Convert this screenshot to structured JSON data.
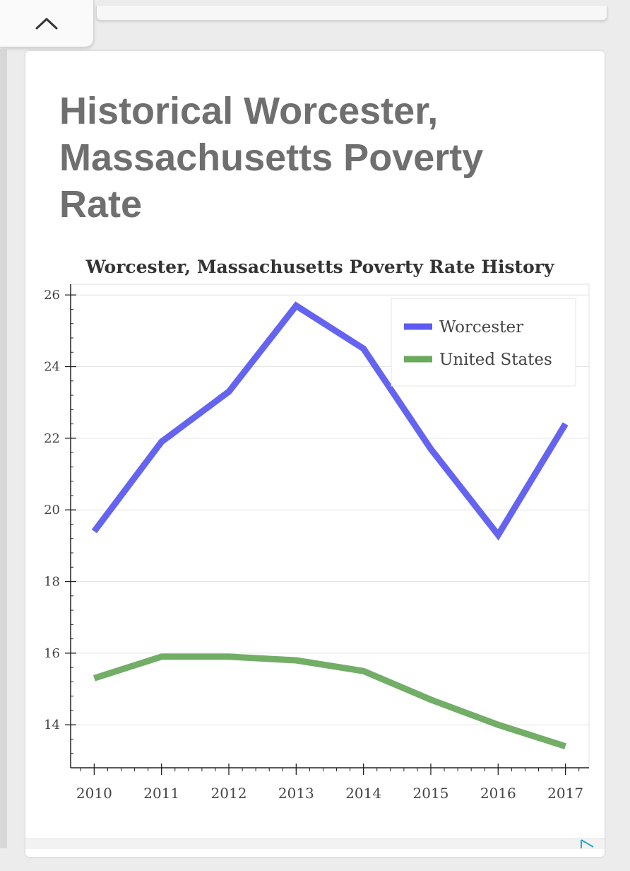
{
  "page": {
    "title": "Historical Worcester, Massachusetts Poverty Rate"
  },
  "icons": {
    "collapse": "chevron-up-icon",
    "ad": "play-triangle-icon"
  },
  "colors": {
    "worcester": "#5c5cf0",
    "united_states": "#6aaa5e",
    "title_text": "#6f6f6f"
  },
  "chart_data": {
    "type": "line",
    "title": "Worcester, Massachusetts Poverty Rate History",
    "xlabel": "",
    "ylabel": "",
    "x": [
      2010,
      2011,
      2012,
      2013,
      2014,
      2015,
      2016,
      2017
    ],
    "series": [
      {
        "name": "Worcester",
        "values": [
          19.4,
          21.9,
          23.3,
          25.7,
          24.5,
          21.7,
          19.3,
          22.4
        ]
      },
      {
        "name": "United States",
        "values": [
          15.3,
          15.9,
          15.9,
          15.8,
          15.5,
          14.7,
          14.0,
          13.4
        ]
      }
    ],
    "yticks": [
      14,
      16,
      18,
      20,
      22,
      24,
      26
    ],
    "xlim": [
      2009.65,
      2017.35
    ],
    "ylim": [
      12.8,
      26.3
    ],
    "grid": true,
    "legend": "top-right"
  }
}
